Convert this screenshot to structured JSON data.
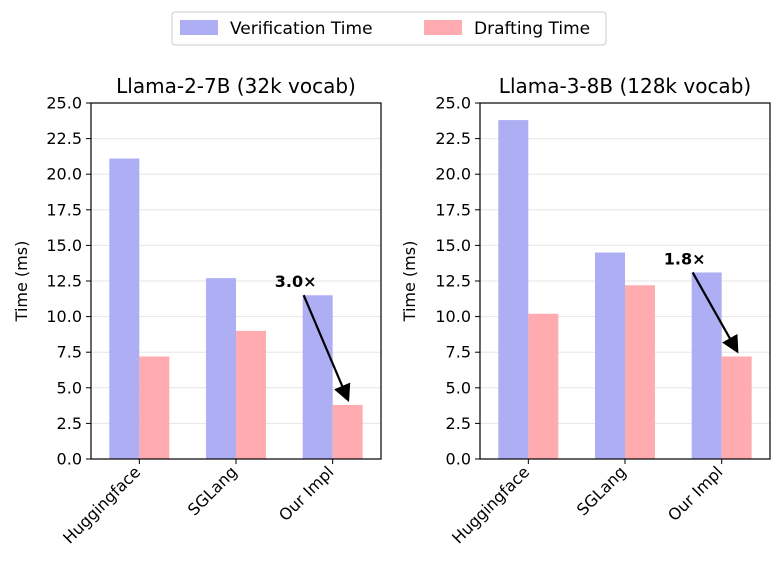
{
  "legend": {
    "items": [
      {
        "label": "Verification Time",
        "color": "#aeaef5"
      },
      {
        "label": "Drafting Time",
        "color": "#ffabb0"
      }
    ]
  },
  "chart_data": [
    {
      "type": "bar",
      "title": "Llama-2-7B (32k vocab)",
      "ylabel": "Time (ms)",
      "xlabel": "",
      "categories": [
        "Huggingface",
        "SGLang",
        "Our Impl"
      ],
      "series": [
        {
          "name": "Verification Time",
          "values": [
            21.1,
            12.7,
            11.5
          ]
        },
        {
          "name": "Drafting Time",
          "values": [
            7.2,
            9.0,
            3.8
          ]
        }
      ],
      "ylim": [
        0,
        25
      ],
      "yticks": [
        "0.0",
        "2.5",
        "5.0",
        "7.5",
        "10.0",
        "12.5",
        "15.0",
        "17.5",
        "20.0",
        "22.5",
        "25.0"
      ],
      "grid": "y",
      "annotation": {
        "text": "3.0×",
        "from": {
          "category": "Our Impl",
          "series": "Verification Time"
        },
        "to": {
          "category": "Our Impl",
          "series": "Drafting Time"
        }
      }
    },
    {
      "type": "bar",
      "title": "Llama-3-8B (128k vocab)",
      "ylabel": "Time (ms)",
      "xlabel": "",
      "categories": [
        "Huggingface",
        "SGLang",
        "Our Impl"
      ],
      "series": [
        {
          "name": "Verification Time",
          "values": [
            23.8,
            14.5,
            13.1
          ]
        },
        {
          "name": "Drafting Time",
          "values": [
            10.2,
            12.2,
            7.2
          ]
        }
      ],
      "ylim": [
        0,
        25
      ],
      "yticks": [
        "0.0",
        "2.5",
        "5.0",
        "7.5",
        "10.0",
        "12.5",
        "15.0",
        "17.5",
        "20.0",
        "22.5",
        "25.0"
      ],
      "grid": "y",
      "annotation": {
        "text": "1.8×",
        "from": {
          "category": "Our Impl",
          "series": "Verification Time"
        },
        "to": {
          "category": "Our Impl",
          "series": "Drafting Time"
        }
      }
    }
  ]
}
